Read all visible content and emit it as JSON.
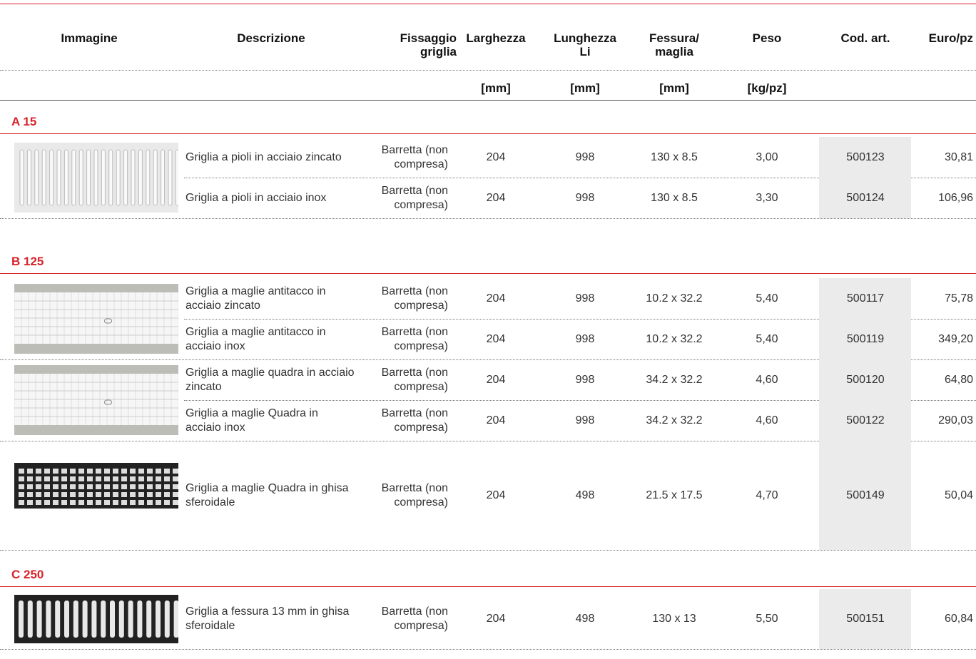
{
  "header": {
    "columns": [
      "Immagine",
      "Descrizione",
      "Fissaggio\ngriglia",
      "Larghezza",
      "Lunghezza\nLi",
      "Fessura/\nmaglia",
      "Peso",
      "Cod. art.",
      "Euro/pz"
    ],
    "units": [
      "[mm]",
      "[mm]",
      "[mm]",
      "[kg/pz]"
    ]
  },
  "sections": [
    {
      "title": "A 15",
      "rows": [
        [
          "Griglia a pioli in acciaio zincato",
          "Barretta (non compresa)",
          "204",
          "998",
          "130 x 8.5",
          "3,00",
          "500123",
          "30,81"
        ],
        [
          "Griglia a pioli in acciaio inox",
          "Barretta (non compresa)",
          "204",
          "998",
          "130 x 8.5",
          "3,30",
          "500124",
          "106,96"
        ]
      ]
    },
    {
      "title": "B 125",
      "rows": [
        [
          "Griglia a maglie antitacco in acciaio zincato",
          "Barretta (non compresa)",
          "204",
          "998",
          "10.2 x 32.2",
          "5,40",
          "500117",
          "75,78"
        ],
        [
          "Griglia a maglie antitacco in acciaio inox",
          "Barretta (non compresa)",
          "204",
          "998",
          "10.2 x 32.2",
          "5,40",
          "500119",
          "349,20"
        ],
        [
          "Griglia a maglie quadra in acciaio zincato",
          "Barretta (non compresa)",
          "204",
          "998",
          "34.2 x 32.2",
          "4,60",
          "500120",
          "64,80"
        ],
        [
          "Griglia a maglie Quadra in acciaio inox",
          "Barretta (non compresa)",
          "204",
          "998",
          "34.2 x 32.2",
          "4,60",
          "500122",
          "290,03"
        ],
        [
          "Griglia a maglie Quadra in ghisa sferoidale",
          "Barretta (non compresa)",
          "204",
          "498",
          "21.5 x 17.5",
          "4,70",
          "500149",
          "50,04"
        ]
      ]
    },
    {
      "title": "C 250",
      "rows": [
        [
          "Griglia a fessura 13 mm in ghisa sferoidale",
          "Barretta (non compresa)",
          "204",
          "498",
          "130 x 13",
          "5,50",
          "500151",
          "60,84"
        ]
      ]
    }
  ]
}
